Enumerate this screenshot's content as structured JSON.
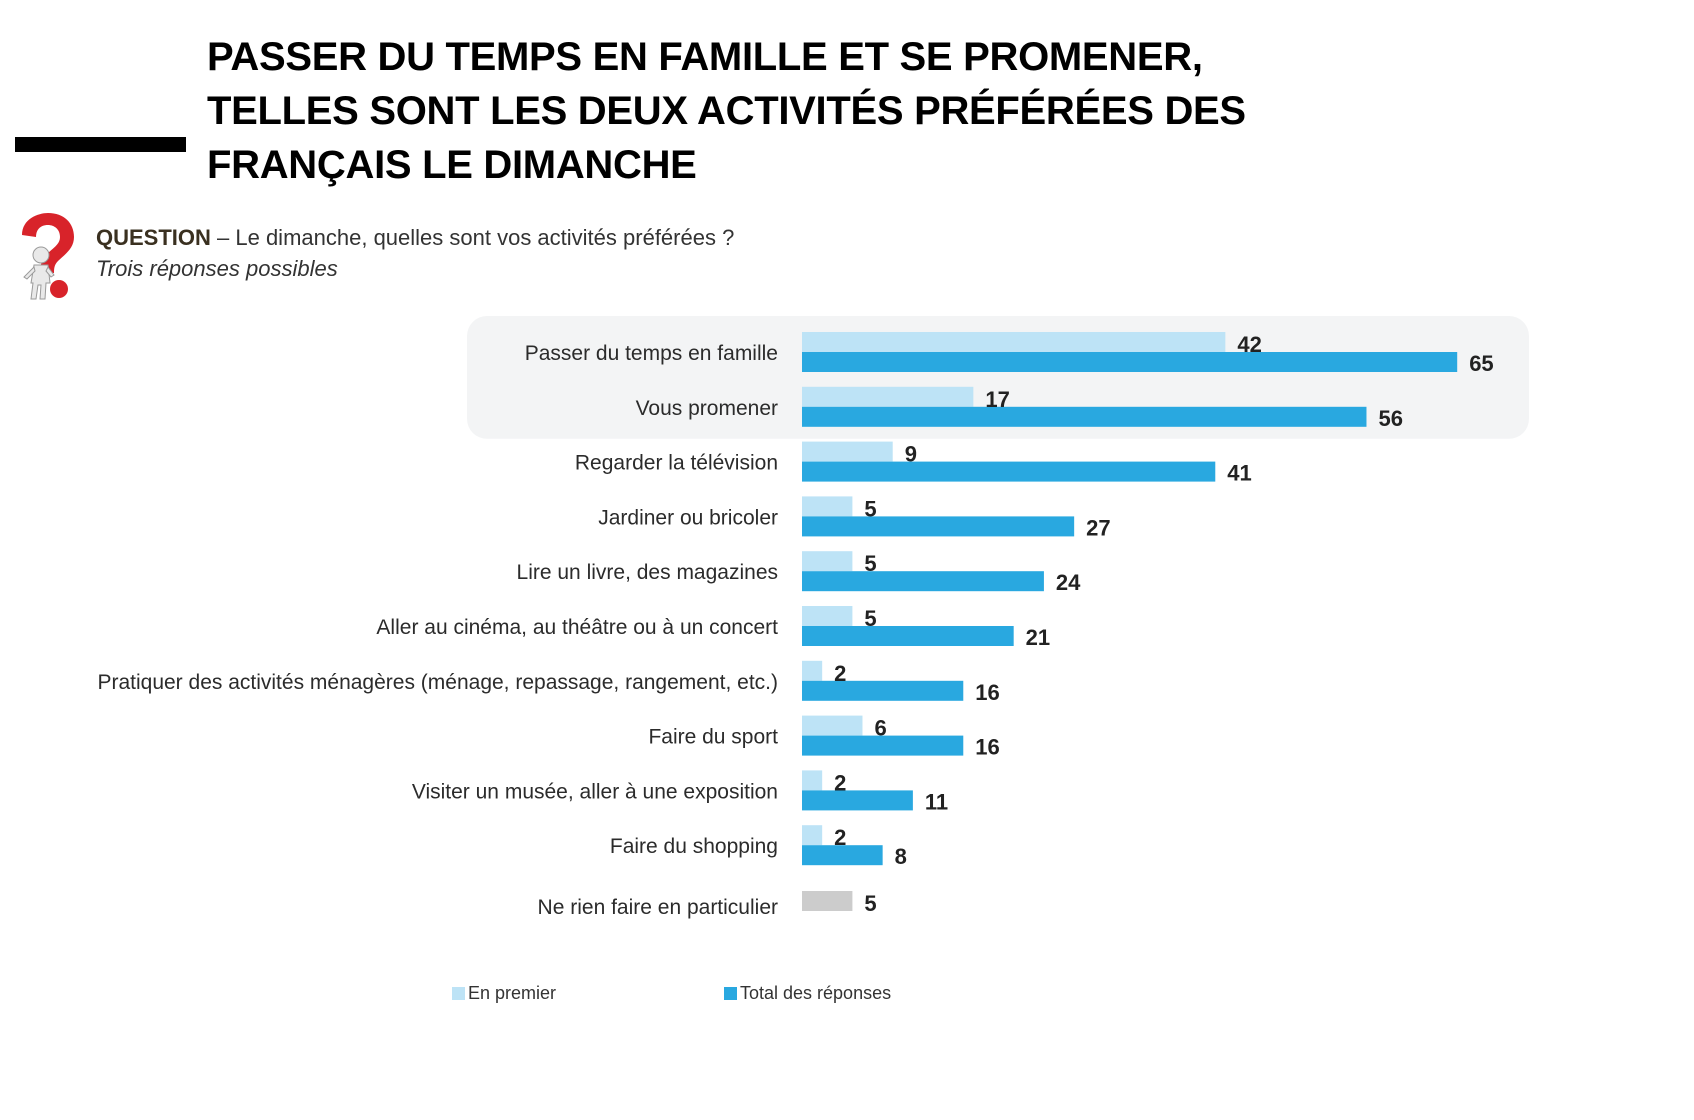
{
  "title": {
    "line1": "PASSER DU TEMPS EN FAMILLE ET SE PROMENER,",
    "line2": "TELLES SONT LES DEUX ACTIVITÉS PRÉFÉRÉES DES",
    "line3": "FRANÇAIS LE DIMANCHE"
  },
  "question": {
    "keyword": "QUESTION",
    "text": " – Le dimanche, quelles sont vos activités préférées ?",
    "subtext": "Trois réponses possibles",
    "icon": "question-mark-figure-icon"
  },
  "colors": {
    "en_premier": "#bde3f6",
    "total": "#29a8e0",
    "neutral": "#cccccc",
    "highlight_band": "#f3f4f5"
  },
  "chart_data": {
    "type": "bar",
    "orientation": "horizontal",
    "categories": [
      "Passer du temps en famille",
      "Vous promener",
      "Regarder la télévision",
      "Jardiner ou bricoler",
      "Lire un livre, des magazines",
      "Aller au cinéma, au théâtre ou à un concert",
      "Pratiquer des activités ménagères (ménage, repassage, rangement, etc.)",
      "Faire du sport",
      "Visiter un musée, aller à une exposition",
      "Faire du shopping",
      "Ne rien faire en particulier"
    ],
    "series": [
      {
        "name": "En premier",
        "values": [
          42,
          17,
          9,
          5,
          5,
          5,
          2,
          6,
          2,
          2,
          5
        ]
      },
      {
        "name": "Total des réponses",
        "values": [
          65,
          56,
          41,
          27,
          24,
          21,
          16,
          16,
          11,
          8,
          null
        ]
      }
    ],
    "highlighted_categories": [
      "Passer du temps en famille",
      "Vous promener"
    ],
    "neutral_categories": [
      "Ne rien faire en particulier"
    ],
    "title": "",
    "xlabel": "",
    "ylabel": "",
    "grid": false,
    "legend_position": "bottom"
  }
}
